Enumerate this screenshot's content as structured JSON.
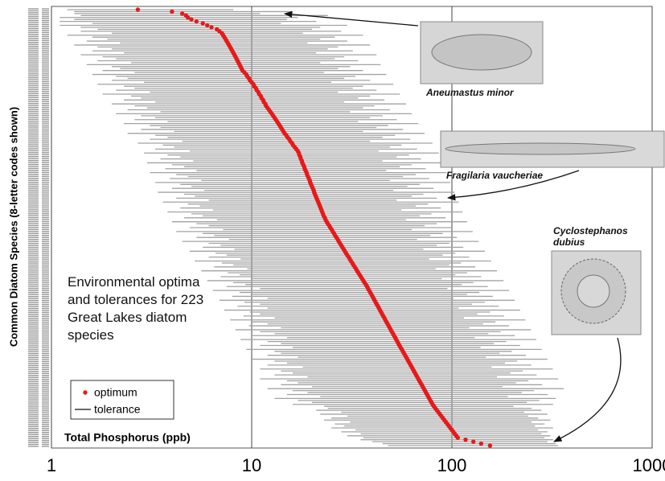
{
  "chart_data": {
    "type": "range",
    "x_label": "Total Phosphorus (ppb)",
    "y_label": "Common Diatom Species (8-letter codes shown)",
    "annotation": "Environmental optima and tolerances for 223 Great Lakes diatom species",
    "xlim": [
      1,
      1000
    ],
    "xticks": [
      1,
      10,
      100,
      1000
    ],
    "x_log": true,
    "grid": true,
    "legend": "lower left",
    "callouts": [
      "Aneumastus minor",
      "Fragilaria vaucheriae",
      "Cyclostephanos dubius"
    ],
    "series": [
      {
        "name": "optimum",
        "color": "#e8191a",
        "values": [
          2.7,
          4.0,
          4.5,
          4.7,
          4.8,
          5.0,
          5.3,
          5.7,
          6.0,
          6.3,
          6.7,
          6.9,
          7.1,
          7.2,
          7.3,
          7.4,
          7.5,
          7.6,
          7.7,
          7.8,
          7.9,
          8.0,
          8.1,
          8.2,
          8.3,
          8.4,
          8.5,
          8.6,
          8.7,
          8.8,
          8.9,
          9.0,
          9.2,
          9.4,
          9.5,
          9.7,
          9.8,
          10,
          10.2,
          10.3,
          10.5,
          10.6,
          10.8,
          10.9,
          11.1,
          11.2,
          11.4,
          11.5,
          11.7,
          11.8,
          12,
          12.2,
          12.4,
          12.6,
          12.8,
          13,
          13.2,
          13.4,
          13.6,
          13.8,
          14,
          14.2,
          14.4,
          14.6,
          14.9,
          15.1,
          15.4,
          15.6,
          15.9,
          16.1,
          16.4,
          16.7,
          17,
          17.2,
          17.3,
          17.5,
          17.6,
          17.8,
          17.9,
          18.1,
          18.3,
          18.4,
          18.6,
          18.8,
          18.9,
          19.1,
          19.3,
          19.5,
          19.6,
          19.8,
          20,
          20.2,
          20.4,
          20.5,
          20.7,
          20.9,
          21.1,
          21.3,
          21.5,
          21.7,
          21.9,
          22.1,
          22.3,
          22.5,
          22.7,
          22.9,
          23.2,
          23.4,
          23.7,
          24,
          24.4,
          24.7,
          25.1,
          25.4,
          25.8,
          26.1,
          26.5,
          26.9,
          27.2,
          27.6,
          28,
          28.4,
          28.8,
          29.2,
          29.6,
          30,
          30.5,
          30.9,
          31.3,
          31.8,
          32.2,
          32.7,
          33.2,
          33.6,
          34.1,
          34.6,
          35.1,
          35.6,
          36.1,
          36.6,
          37.2,
          37.7,
          38.1,
          38.6,
          39.1,
          39.6,
          40.1,
          40.6,
          41.1,
          41.6,
          42.1,
          42.7,
          43.2,
          43.7,
          44.3,
          44.8,
          45.4,
          46,
          46.5,
          47.1,
          47.7,
          48.3,
          48.9,
          49.5,
          50.1,
          50.8,
          51.4,
          52.1,
          52.7,
          53.4,
          54,
          54.7,
          55.4,
          56.2,
          56.9,
          57.6,
          58.4,
          59.1,
          59.9,
          60.6,
          61.4,
          62.2,
          63,
          63.8,
          64.6,
          65.4,
          66.2,
          67.1,
          67.9,
          68.8,
          69.7,
          70.6,
          71.5,
          72.4,
          73.3,
          74.2,
          75.2,
          76.1,
          77.1,
          78.1,
          79.1,
          80.1,
          81.3,
          82.7,
          84.1,
          85.6,
          87.1,
          88.6,
          90.1,
          91.7,
          93.3,
          94.9,
          96.5,
          98.2,
          99.9,
          101.6,
          103.4,
          105.2,
          107,
          117,
          128,
          140,
          155
        ]
      },
      {
        "name": "tolerance",
        "color": "#a3a3a3",
        "low": [
          1.2,
          1.3,
          1.3,
          1.4,
          1.1,
          1.3,
          1.1,
          1.6,
          1.1,
          1.4,
          1.7,
          1.4,
          2.0,
          1.2,
          1.6,
          1.9,
          1.5,
          2.2,
          1.3,
          1.7,
          2.0,
          1.6,
          2.3,
          1.4,
          1.8,
          2.1,
          1.7,
          2.5,
          1.5,
          2.0,
          2.2,
          1.8,
          2.6,
          1.6,
          2.1,
          2.4,
          2.0,
          2.9,
          1.7,
          2.3,
          2.6,
          2.1,
          3.1,
          1.8,
          2.5,
          2.8,
          2.3,
          3.3,
          2.0,
          2.6,
          3.0,
          2.4,
          3.5,
          2.1,
          2.8,
          3.3,
          2.6,
          3.8,
          2.3,
          3.1,
          3.5,
          2.8,
          4.1,
          2.4,
          3.3,
          3.8,
          3.1,
          4.5,
          2.7,
          3.6,
          4.1,
          3.3,
          4.9,
          2.9,
          3.8,
          4.4,
          3.5,
          5.1,
          3.0,
          4.0,
          4.6,
          3.7,
          5.3,
          3.1,
          4.2,
          4.8,
          3.9,
          5.6,
          3.3,
          4.4,
          5.0,
          4.0,
          5.8,
          3.4,
          4.6,
          5.2,
          4.2,
          6.1,
          3.6,
          4.8,
          5.5,
          4.4,
          6.4,
          3.8,
          5.0,
          5.7,
          4.6,
          6.7,
          4.0,
          5.3,
          6.1,
          4.9,
          7.2,
          4.2,
          5.7,
          6.5,
          5.3,
          7.7,
          4.5,
          6.1,
          7.0,
          5.7,
          8.2,
          4.9,
          6.6,
          7.5,
          6.1,
          8.8,
          5.2,
          7.1,
          8.1,
          6.5,
          9.5,
          5.6,
          7.6,
          8.7,
          7.0,
          10,
          6.0,
          8.1,
          9.3,
          7.5,
          11,
          6.4,
          8.7,
          9.9,
          8.0,
          12,
          6.9,
          9.2,
          11,
          8.5,
          12,
          7.3,
          9.8,
          11,
          9.1,
          13,
          7.8,
          10,
          12,
          9.7,
          14,
          8.3,
          11,
          13,
          10,
          15,
          8.8,
          12,
          14,
          11,
          16,
          9.4,
          13,
          14,
          12,
          17,
          10,
          13,
          15,
          12,
          18,
          11,
          14,
          16,
          13,
          19,
          11,
          15,
          17,
          14,
          20,
          12,
          16,
          19,
          15,
          22,
          13,
          17,
          20,
          16,
          23,
          24,
          21,
          28,
          22,
          30,
          25,
          23,
          31,
          26,
          29,
          25,
          33,
          28,
          35,
          30,
          36,
          35,
          40,
          45,
          48
        ],
        "high": [
          8.1,
          16,
          11,
          24,
          17,
          15,
          21,
          14,
          30,
          22,
          20,
          28,
          18,
          36,
          26,
          22,
          30,
          19,
          39,
          27,
          24,
          32,
          21,
          42,
          29,
          26,
          34,
          22,
          44,
          31,
          27,
          36,
          23,
          47,
          33,
          29,
          39,
          25,
          51,
          36,
          32,
          42,
          27,
          55,
          39,
          34,
          46,
          29,
          59,
          41,
          36,
          49,
          31,
          63,
          45,
          39,
          53,
          34,
          68,
          48,
          42,
          57,
          36,
          73,
          52,
          45,
          62,
          39,
          80,
          56,
          49,
          67,
          43,
          86,
          61,
          53,
          70,
          45,
          90,
          63,
          55,
          74,
          47,
          94,
          66,
          57,
          77,
          49,
          98,
          69,
          60,
          81,
          51,
          103,
          72,
          63,
          84,
          53,
          108,
          76,
          66,
          88,
          56,
          113,
          79,
          69,
          93,
          59,
          119,
          84,
          73,
          99,
          63,
          127,
          90,
          78,
          106,
          67,
          136,
          97,
          84,
          114,
          72,
          146,
          104,
          90,
          122,
          77,
          157,
          111,
          97,
          131,
          83,
          168,
          119,
          104,
          140,
          89,
          181,
          128,
          112,
          151,
          95,
          193,
          137,
          119,
          160,
          102,
          206,
          146,
          126,
          171,
          108,
          219,
          155,
          134,
          182,
          115,
          233,
          165,
          143,
          193,
          122,
          248,
          175,
          152,
          206,
          130,
          264,
          187,
          162,
          219,
          139,
          281,
          199,
          173,
          234,
          148,
          300,
          212,
          184,
          249,
          158,
          319,
          226,
          196,
          265,
          168,
          340,
          241,
          209,
          282,
          179,
          362,
          257,
          223,
          301,
          190,
          330,
          273,
          237,
          320,
          203,
          250,
          280,
          230,
          300,
          240,
          270,
          310,
          250,
          290,
          260,
          320,
          270,
          300,
          280,
          310,
          290,
          320,
          300,
          330,
          340
        ]
      }
    ]
  }
}
